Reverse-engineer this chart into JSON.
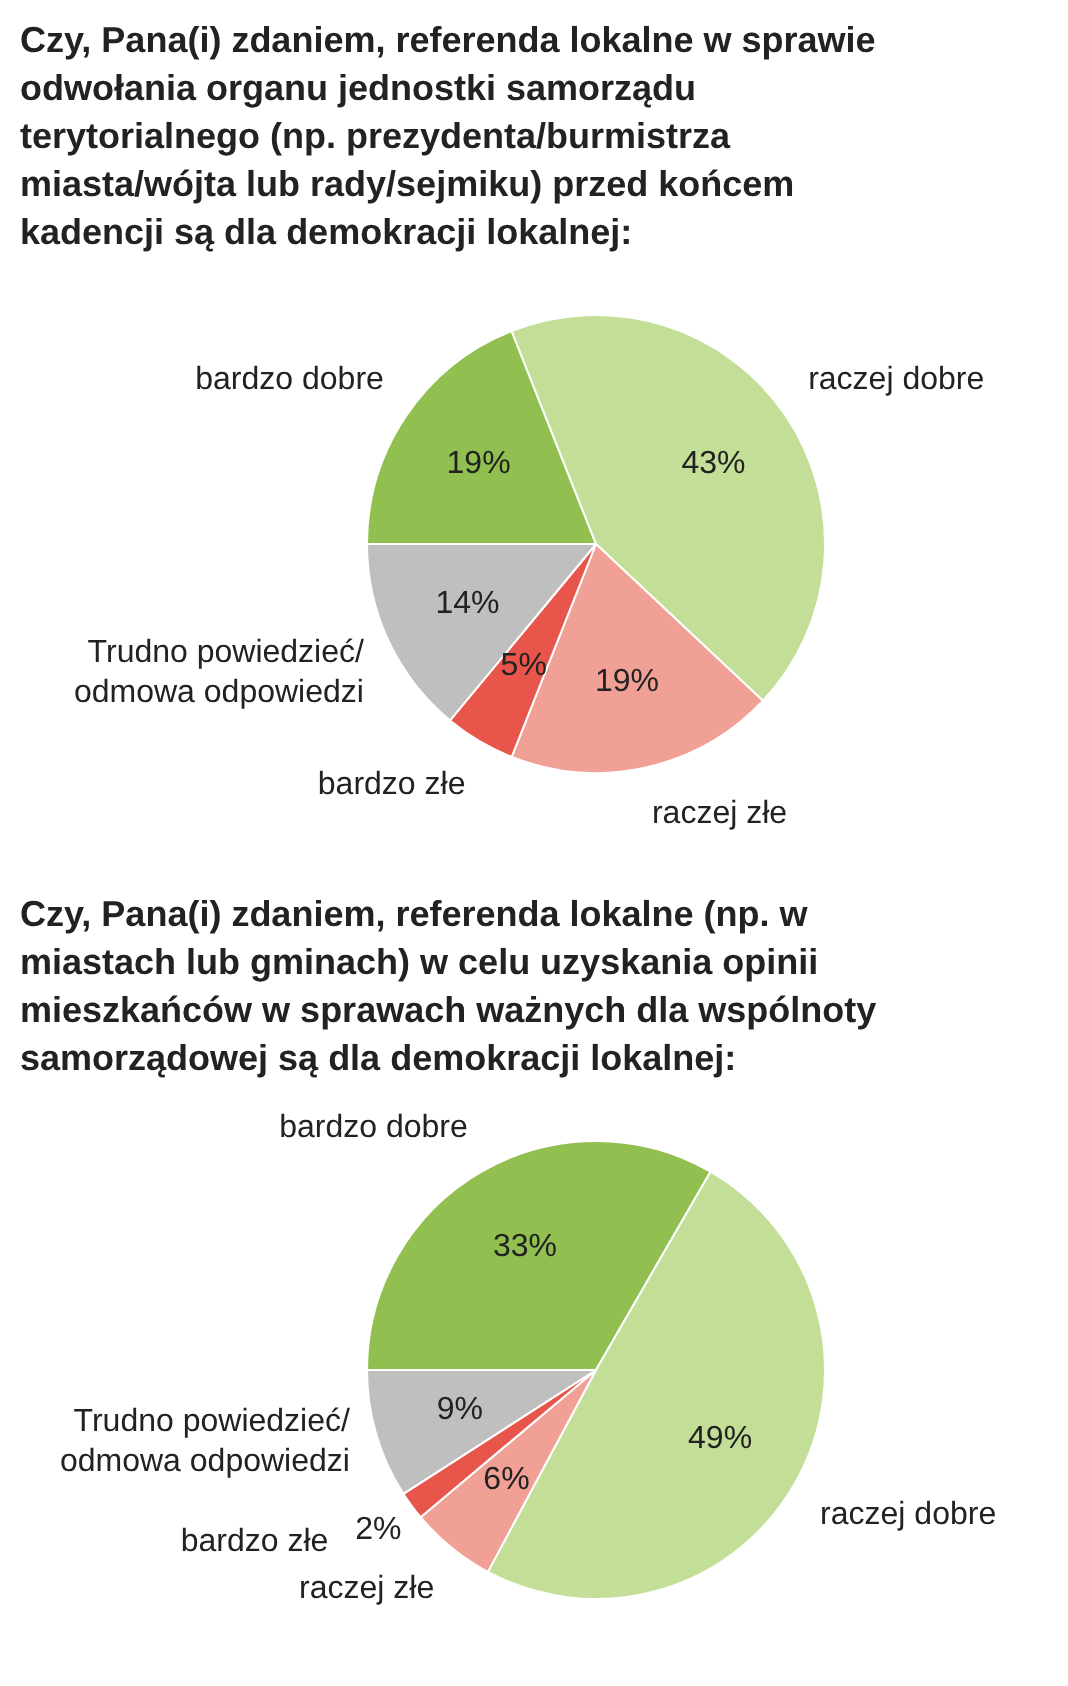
{
  "chart_data": [
    {
      "type": "pie",
      "title": "Czy, Pana(i) zdaniem, referenda lokalne w sprawie odwołania organu jednostki samorządu terytorialnego (np. prezydenta/burmistrza miasta/wójta lub rady/sejmiku) przed końcem kadencji są dla demokracji lokalnej:",
      "categories": [
        "bardzo dobre",
        "raczej dobre",
        "raczej złe",
        "bardzo złe",
        "Trudno powiedzieć/ odmowa odpowiedzi"
      ],
      "values": [
        19,
        43,
        19,
        5,
        14
      ],
      "value_labels": [
        "19%",
        "43%",
        "19%",
        "5%",
        "14%"
      ],
      "colors": [
        "#92c050",
        "#c3de96",
        "#f1a096",
        "#e8554a",
        "#bfbfbf"
      ]
    },
    {
      "type": "pie",
      "title": "Czy, Pana(i) zdaniem, referenda lokalne (np. w miastach lub gminach) w celu uzyskania opinii mieszkańców w sprawach ważnych dla wspólnoty samorządowej są dla demokracji lokalnej:",
      "categories": [
        "bardzo dobre",
        "raczej dobre",
        "raczej złe",
        "bardzo złe",
        "Trudno powiedzieć/ odmowa odpowiedzi"
      ],
      "values": [
        33,
        49,
        6,
        2,
        9
      ],
      "value_labels": [
        "33%",
        "49%",
        "6%",
        "2%",
        "9%"
      ],
      "colors": [
        "#92c050",
        "#c3de96",
        "#f1a096",
        "#e8554a",
        "#bfbfbf"
      ]
    }
  ]
}
